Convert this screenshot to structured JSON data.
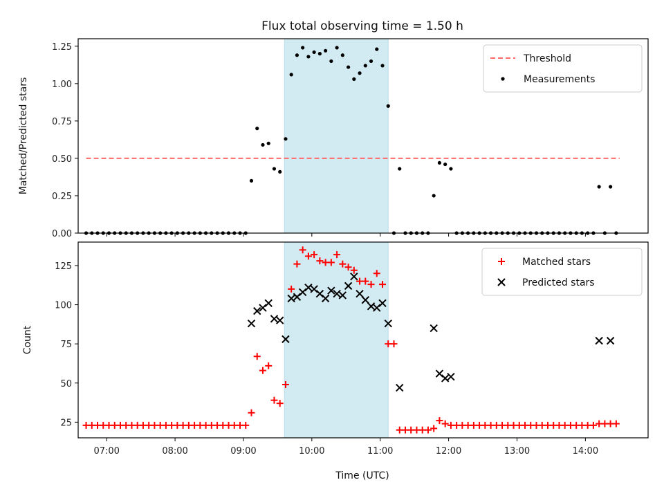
{
  "chart_data": {
    "title": "Flux total observing time = 1.50 h",
    "xlabel": "Time (UTC)",
    "x_ticks": [
      "07:00",
      "08:00",
      "09:00",
      "10:00",
      "11:00",
      "12:00",
      "13:00",
      "14:00"
    ],
    "xlim": [
      "06:35",
      "14:55"
    ],
    "shaded_region": {
      "start": "09:36",
      "end": "11:07",
      "color": "#add8e6"
    },
    "panels": [
      {
        "type": "scatter",
        "ylabel": "Matched/Predicted stars",
        "ylim": [
          0,
          1.3
        ],
        "y_ticks": [
          "0.00",
          "0.25",
          "0.50",
          "0.75",
          "1.00",
          "1.25"
        ],
        "legend_position": "top-right",
        "threshold": {
          "name": "Threshold",
          "value": 0.5,
          "x_start": "06:42",
          "x_end": "14:30",
          "color": "#ff6b6b"
        },
        "series": [
          {
            "name": "Measurements",
            "marker": "dot",
            "color": "#000000",
            "points": [
              [
                "06:42",
                0
              ],
              [
                "06:47",
                0
              ],
              [
                "06:52",
                0
              ],
              [
                "06:57",
                0
              ],
              [
                "07:02",
                0
              ],
              [
                "07:07",
                0
              ],
              [
                "07:12",
                0
              ],
              [
                "07:17",
                0
              ],
              [
                "07:22",
                0
              ],
              [
                "07:27",
                0
              ],
              [
                "07:32",
                0
              ],
              [
                "07:37",
                0
              ],
              [
                "07:42",
                0
              ],
              [
                "07:47",
                0
              ],
              [
                "07:52",
                0
              ],
              [
                "07:57",
                0
              ],
              [
                "08:02",
                0
              ],
              [
                "08:07",
                0
              ],
              [
                "08:12",
                0
              ],
              [
                "08:17",
                0
              ],
              [
                "08:22",
                0
              ],
              [
                "08:27",
                0
              ],
              [
                "08:32",
                0
              ],
              [
                "08:37",
                0
              ],
              [
                "08:42",
                0
              ],
              [
                "08:47",
                0
              ],
              [
                "08:52",
                0
              ],
              [
                "08:57",
                0
              ],
              [
                "09:02",
                0
              ],
              [
                "09:07",
                0.35
              ],
              [
                "09:12",
                0.7
              ],
              [
                "09:17",
                0.59
              ],
              [
                "09:22",
                0.6
              ],
              [
                "09:27",
                0.43
              ],
              [
                "09:32",
                0.41
              ],
              [
                "09:37",
                0.63
              ],
              [
                "09:42",
                1.06
              ],
              [
                "09:47",
                1.19
              ],
              [
                "09:52",
                1.24
              ],
              [
                "09:57",
                1.18
              ],
              [
                "10:02",
                1.21
              ],
              [
                "10:07",
                1.2
              ],
              [
                "10:12",
                1.22
              ],
              [
                "10:17",
                1.15
              ],
              [
                "10:22",
                1.24
              ],
              [
                "10:27",
                1.19
              ],
              [
                "10:32",
                1.11
              ],
              [
                "10:37",
                1.03
              ],
              [
                "10:42",
                1.07
              ],
              [
                "10:47",
                1.12
              ],
              [
                "10:52",
                1.15
              ],
              [
                "10:57",
                1.23
              ],
              [
                "11:02",
                1.12
              ],
              [
                "11:07",
                0.85
              ],
              [
                "11:12",
                0
              ],
              [
                "11:17",
                0.43
              ],
              [
                "11:22",
                0
              ],
              [
                "11:27",
                0
              ],
              [
                "11:32",
                0
              ],
              [
                "11:37",
                0
              ],
              [
                "11:42",
                0
              ],
              [
                "11:47",
                0.25
              ],
              [
                "11:52",
                0.47
              ],
              [
                "11:57",
                0.46
              ],
              [
                "12:02",
                0.43
              ],
              [
                "12:07",
                0
              ],
              [
                "12:12",
                0
              ],
              [
                "12:17",
                0
              ],
              [
                "12:22",
                0
              ],
              [
                "12:27",
                0
              ],
              [
                "12:32",
                0
              ],
              [
                "12:37",
                0
              ],
              [
                "12:42",
                0
              ],
              [
                "12:47",
                0
              ],
              [
                "12:52",
                0
              ],
              [
                "12:57",
                0
              ],
              [
                "13:02",
                0
              ],
              [
                "13:07",
                0
              ],
              [
                "13:12",
                0
              ],
              [
                "13:17",
                0
              ],
              [
                "13:22",
                0
              ],
              [
                "13:27",
                0
              ],
              [
                "13:32",
                0
              ],
              [
                "13:37",
                0
              ],
              [
                "13:42",
                0
              ],
              [
                "13:47",
                0
              ],
              [
                "13:52",
                0
              ],
              [
                "13:57",
                0
              ],
              [
                "14:02",
                0
              ],
              [
                "14:07",
                0
              ],
              [
                "14:12",
                0.31
              ],
              [
                "14:17",
                0
              ],
              [
                "14:22",
                0.31
              ],
              [
                "14:27",
                0
              ]
            ]
          }
        ]
      },
      {
        "type": "scatter",
        "ylabel": "Count",
        "ylim": [
          15,
          140
        ],
        "y_ticks": [
          "25",
          "50",
          "75",
          "100",
          "125"
        ],
        "legend_position": "top-right",
        "series": [
          {
            "name": "Matched stars",
            "marker": "plus",
            "color": "#ff0000",
            "points": [
              [
                "06:42",
                23
              ],
              [
                "06:47",
                23
              ],
              [
                "06:52",
                23
              ],
              [
                "06:57",
                23
              ],
              [
                "07:02",
                23
              ],
              [
                "07:07",
                23
              ],
              [
                "07:12",
                23
              ],
              [
                "07:17",
                23
              ],
              [
                "07:22",
                23
              ],
              [
                "07:27",
                23
              ],
              [
                "07:32",
                23
              ],
              [
                "07:37",
                23
              ],
              [
                "07:42",
                23
              ],
              [
                "07:47",
                23
              ],
              [
                "07:52",
                23
              ],
              [
                "07:57",
                23
              ],
              [
                "08:02",
                23
              ],
              [
                "08:07",
                23
              ],
              [
                "08:12",
                23
              ],
              [
                "08:17",
                23
              ],
              [
                "08:22",
                23
              ],
              [
                "08:27",
                23
              ],
              [
                "08:32",
                23
              ],
              [
                "08:37",
                23
              ],
              [
                "08:42",
                23
              ],
              [
                "08:47",
                23
              ],
              [
                "08:52",
                23
              ],
              [
                "08:57",
                23
              ],
              [
                "09:02",
                23
              ],
              [
                "09:07",
                31
              ],
              [
                "09:12",
                67
              ],
              [
                "09:17",
                58
              ],
              [
                "09:22",
                61
              ],
              [
                "09:27",
                39
              ],
              [
                "09:32",
                37
              ],
              [
                "09:37",
                49
              ],
              [
                "09:42",
                110
              ],
              [
                "09:47",
                126
              ],
              [
                "09:52",
                135
              ],
              [
                "09:57",
                131
              ],
              [
                "10:02",
                132
              ],
              [
                "10:07",
                128
              ],
              [
                "10:12",
                127
              ],
              [
                "10:17",
                127
              ],
              [
                "10:22",
                132
              ],
              [
                "10:27",
                126
              ],
              [
                "10:32",
                124
              ],
              [
                "10:37",
                122
              ],
              [
                "10:42",
                115
              ],
              [
                "10:47",
                115
              ],
              [
                "10:52",
                113
              ],
              [
                "10:57",
                120
              ],
              [
                "11:02",
                113
              ],
              [
                "11:07",
                75
              ],
              [
                "11:12",
                75
              ],
              [
                "11:17",
                20
              ],
              [
                "11:22",
                20
              ],
              [
                "11:27",
                20
              ],
              [
                "11:32",
                20
              ],
              [
                "11:37",
                20
              ],
              [
                "11:42",
                20
              ],
              [
                "11:47",
                21
              ],
              [
                "11:52",
                26
              ],
              [
                "11:57",
                24
              ],
              [
                "12:02",
                23
              ],
              [
                "12:07",
                23
              ],
              [
                "12:12",
                23
              ],
              [
                "12:17",
                23
              ],
              [
                "12:22",
                23
              ],
              [
                "12:27",
                23
              ],
              [
                "12:32",
                23
              ],
              [
                "12:37",
                23
              ],
              [
                "12:42",
                23
              ],
              [
                "12:47",
                23
              ],
              [
                "12:52",
                23
              ],
              [
                "12:57",
                23
              ],
              [
                "13:02",
                23
              ],
              [
                "13:07",
                23
              ],
              [
                "13:12",
                23
              ],
              [
                "13:17",
                23
              ],
              [
                "13:22",
                23
              ],
              [
                "13:27",
                23
              ],
              [
                "13:32",
                23
              ],
              [
                "13:37",
                23
              ],
              [
                "13:42",
                23
              ],
              [
                "13:47",
                23
              ],
              [
                "13:52",
                23
              ],
              [
                "13:57",
                23
              ],
              [
                "14:02",
                23
              ],
              [
                "14:07",
                23
              ],
              [
                "14:12",
                24
              ],
              [
                "14:17",
                24
              ],
              [
                "14:22",
                24
              ],
              [
                "14:27",
                24
              ]
            ]
          },
          {
            "name": "Predicted stars",
            "marker": "cross",
            "color": "#000000",
            "points": [
              [
                "09:07",
                88
              ],
              [
                "09:12",
                96
              ],
              [
                "09:17",
                98
              ],
              [
                "09:22",
                101
              ],
              [
                "09:27",
                91
              ],
              [
                "09:32",
                90
              ],
              [
                "09:37",
                78
              ],
              [
                "09:42",
                104
              ],
              [
                "09:47",
                105
              ],
              [
                "09:52",
                108
              ],
              [
                "09:57",
                111
              ],
              [
                "10:02",
                110
              ],
              [
                "10:07",
                107
              ],
              [
                "10:12",
                104
              ],
              [
                "10:17",
                109
              ],
              [
                "10:22",
                107
              ],
              [
                "10:27",
                106
              ],
              [
                "10:32",
                112
              ],
              [
                "10:37",
                118
              ],
              [
                "10:42",
                107
              ],
              [
                "10:47",
                103
              ],
              [
                "10:52",
                99
              ],
              [
                "10:57",
                98
              ],
              [
                "11:02",
                101
              ],
              [
                "11:07",
                88
              ],
              [
                "11:17",
                47
              ],
              [
                "11:47",
                85
              ],
              [
                "11:52",
                56
              ],
              [
                "11:57",
                53
              ],
              [
                "12:02",
                54
              ],
              [
                "14:12",
                77
              ],
              [
                "14:22",
                77
              ]
            ]
          }
        ]
      }
    ]
  }
}
